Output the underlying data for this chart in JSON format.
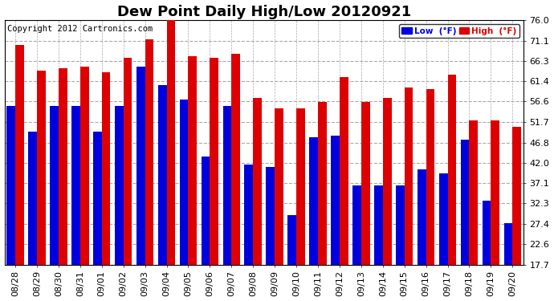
{
  "title": "Dew Point Daily High/Low 20120921",
  "copyright": "Copyright 2012 Cartronics.com",
  "legend_low": "Low  (°F)",
  "legend_high": "High  (°F)",
  "dates": [
    "08/28",
    "08/29",
    "08/30",
    "08/31",
    "09/01",
    "09/02",
    "09/03",
    "09/04",
    "09/05",
    "09/06",
    "09/07",
    "09/08",
    "09/09",
    "09/10",
    "09/11",
    "09/12",
    "09/13",
    "09/14",
    "09/15",
    "09/16",
    "09/17",
    "09/18",
    "09/19",
    "09/20"
  ],
  "high_values": [
    70.0,
    64.0,
    64.5,
    65.0,
    63.5,
    67.0,
    71.5,
    76.5,
    67.5,
    67.0,
    68.0,
    57.5,
    55.0,
    55.0,
    56.5,
    62.5,
    56.5,
    57.5,
    60.0,
    59.5,
    63.0,
    52.0,
    52.0,
    50.5
  ],
  "low_values": [
    55.5,
    49.5,
    55.5,
    55.5,
    49.5,
    55.5,
    65.0,
    60.5,
    57.0,
    43.5,
    55.5,
    41.5,
    41.0,
    29.5,
    48.0,
    48.5,
    36.5,
    36.5,
    36.5,
    40.5,
    39.5,
    47.5,
    33.0,
    27.5
  ],
  "yticks": [
    17.7,
    22.6,
    27.4,
    32.3,
    37.1,
    42.0,
    46.8,
    51.7,
    56.6,
    61.4,
    66.3,
    71.1,
    76.0
  ],
  "ymin": 17.7,
  "ymax": 76.0,
  "bg_color": "#ffffff",
  "bar_width": 0.4,
  "low_color": "#0000dd",
  "high_color": "#dd0000",
  "title_fontsize": 13,
  "copyright_fontsize": 7.5,
  "tick_fontsize": 8
}
